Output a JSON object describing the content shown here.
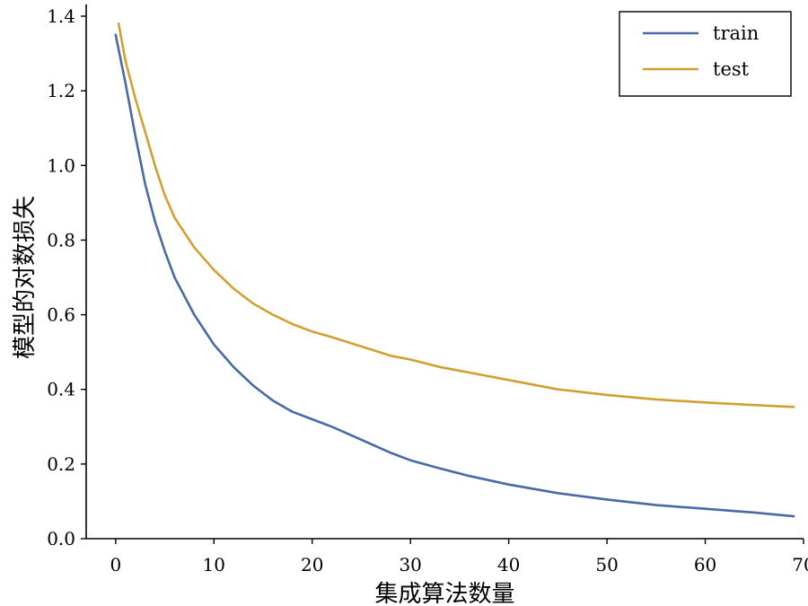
{
  "chart_data": {
    "type": "line",
    "title": "",
    "xlabel": "集成算法数量",
    "ylabel": "模型的对数损失",
    "xlim": [
      -3,
      70
    ],
    "ylim": [
      0.0,
      1.4
    ],
    "x_ticks": [
      0,
      10,
      20,
      30,
      40,
      50,
      60,
      70
    ],
    "y_ticks": [
      0.0,
      0.2,
      0.4,
      0.6,
      0.8,
      1.0,
      1.2,
      1.4
    ],
    "x_tick_labels": [
      "0",
      "10",
      "20",
      "30",
      "40",
      "50",
      "60",
      "70"
    ],
    "y_tick_labels": [
      "0.0",
      "0.2",
      "0.4",
      "0.6",
      "0.8",
      "1.0",
      "1.2",
      "1.4"
    ],
    "legend_position": "top-right",
    "grid": false,
    "series": [
      {
        "name": "train",
        "color": "#4a6aa5",
        "x": [
          0,
          1,
          2,
          3,
          4,
          5,
          6,
          8,
          10,
          12,
          14,
          16,
          18,
          20,
          22,
          25,
          28,
          30,
          33,
          36,
          40,
          45,
          50,
          55,
          60,
          65,
          69
        ],
        "y": [
          1.35,
          1.22,
          1.08,
          0.95,
          0.85,
          0.77,
          0.7,
          0.6,
          0.52,
          0.46,
          0.41,
          0.37,
          0.34,
          0.32,
          0.3,
          0.265,
          0.23,
          0.21,
          0.188,
          0.168,
          0.145,
          0.122,
          0.105,
          0.09,
          0.08,
          0.07,
          0.06
        ]
      },
      {
        "name": "test",
        "color": "#d1a12f",
        "x": [
          0.3,
          1,
          2,
          3,
          4,
          5,
          6,
          8,
          10,
          12,
          14,
          16,
          18,
          20,
          22,
          25,
          28,
          30,
          33,
          36,
          40,
          45,
          50,
          55,
          60,
          65,
          69
        ],
        "y": [
          1.38,
          1.28,
          1.18,
          1.09,
          1.0,
          0.92,
          0.86,
          0.78,
          0.72,
          0.67,
          0.63,
          0.6,
          0.575,
          0.555,
          0.54,
          0.515,
          0.49,
          0.48,
          0.46,
          0.445,
          0.425,
          0.4,
          0.385,
          0.373,
          0.365,
          0.358,
          0.353
        ]
      }
    ]
  }
}
